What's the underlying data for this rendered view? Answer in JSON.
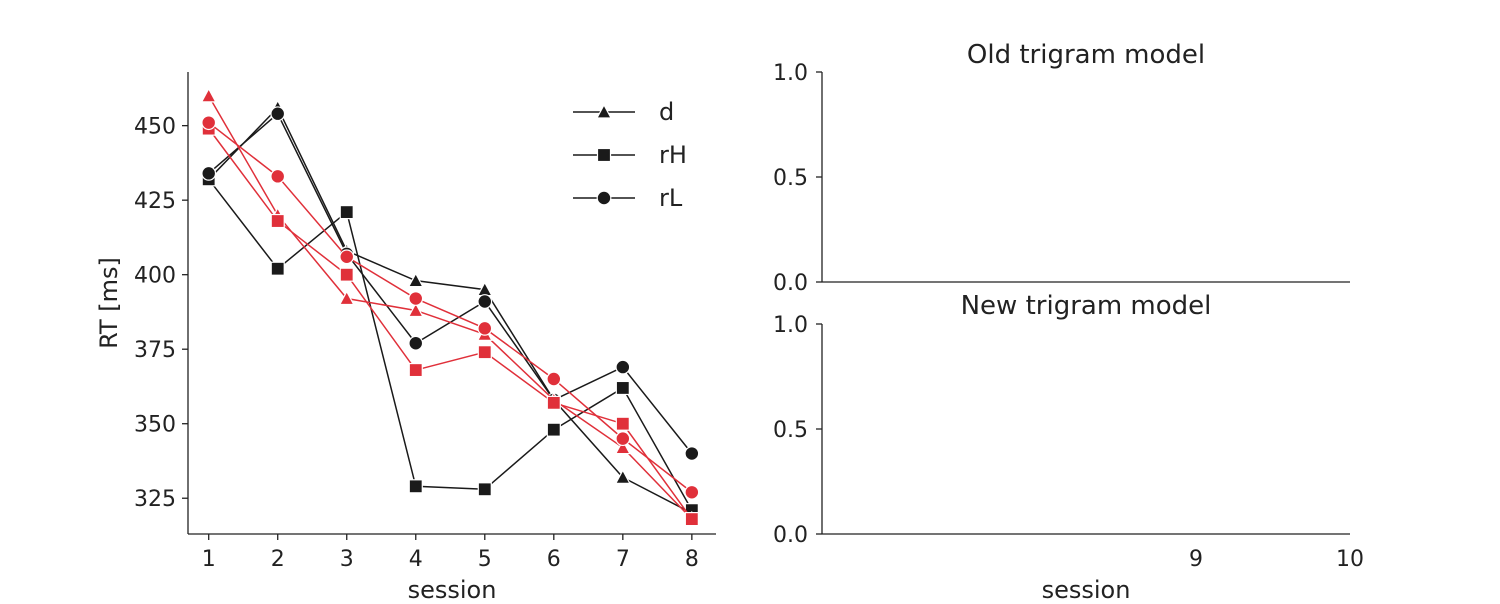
{
  "chart_data": [
    {
      "type": "line",
      "xlabel": "session",
      "ylabel": "RT [ms]",
      "x": [
        1,
        2,
        3,
        4,
        5,
        6,
        7,
        8
      ],
      "xlim": [
        0.7,
        8.35
      ],
      "ylim": [
        313,
        468
      ],
      "yticks": [
        325,
        350,
        375,
        400,
        425,
        450
      ],
      "legend": {
        "placement": "top-right",
        "entries": [
          {
            "label": "d",
            "marker": "triangle"
          },
          {
            "label": "rH",
            "marker": "square"
          },
          {
            "label": "rL",
            "marker": "circle"
          }
        ]
      },
      "colors": {
        "black": "#1a1a1a",
        "red": "#e0303a"
      },
      "series": [
        {
          "marker": "triangle",
          "color": "black",
          "values": [
            432,
            456,
            408,
            398,
            395,
            358,
            332,
            320
          ]
        },
        {
          "marker": "square",
          "color": "black",
          "values": [
            432,
            402,
            421,
            329,
            328,
            348,
            362,
            321
          ]
        },
        {
          "marker": "circle",
          "color": "black",
          "values": [
            434,
            454,
            407,
            377,
            391,
            358,
            369,
            340
          ]
        },
        {
          "marker": "triangle",
          "color": "red",
          "values": [
            460,
            420,
            392,
            388,
            380,
            358,
            342,
            318
          ]
        },
        {
          "marker": "square",
          "color": "red",
          "values": [
            449,
            418,
            400,
            368,
            374,
            357,
            350,
            318
          ]
        },
        {
          "marker": "circle",
          "color": "red",
          "values": [
            451,
            433,
            406,
            392,
            382,
            365,
            345,
            327
          ]
        }
      ]
    },
    {
      "type": "line",
      "title": "Old trigram model",
      "ylim": [
        0,
        1
      ],
      "yticks": [
        "0.0",
        "0.5",
        "1.0"
      ],
      "series": []
    },
    {
      "type": "line",
      "title": "New trigram model",
      "xlabel": "session",
      "ylim": [
        0,
        1
      ],
      "yticks": [
        "0.0",
        "0.5",
        "1.0"
      ],
      "xticks": [
        "9",
        "10"
      ],
      "series": []
    }
  ]
}
